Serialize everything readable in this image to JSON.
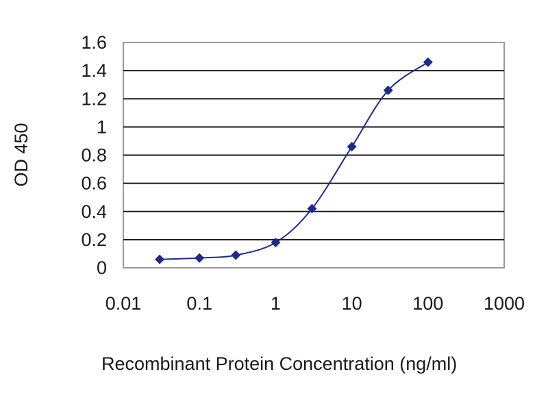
{
  "chart_data": {
    "type": "line",
    "xlabel": "Recombinant Protein Concentration (ng/ml)",
    "ylabel": "OD 450",
    "x_scale": "log",
    "xlim": [
      0.01,
      1000
    ],
    "ylim": [
      0,
      1.6
    ],
    "x_tick_labels": [
      "0.01",
      "0.1",
      "1",
      "10",
      "100",
      "1000"
    ],
    "y_tick_labels": [
      "0",
      "0.2",
      "0.4",
      "0.6",
      "0.8",
      "1",
      "1.2",
      "1.4",
      "1.6"
    ],
    "grid": "horizontal",
    "series": [
      {
        "x": [
          0.03,
          0.1,
          0.3,
          1,
          3,
          10,
          30,
          100
        ],
        "y": [
          0.06,
          0.07,
          0.09,
          0.18,
          0.42,
          0.86,
          1.26,
          1.46
        ]
      }
    ],
    "colors": {
      "series": "#1c2a8c",
      "grid": "#1a1a1a",
      "frame": "#9a9a9a"
    }
  }
}
